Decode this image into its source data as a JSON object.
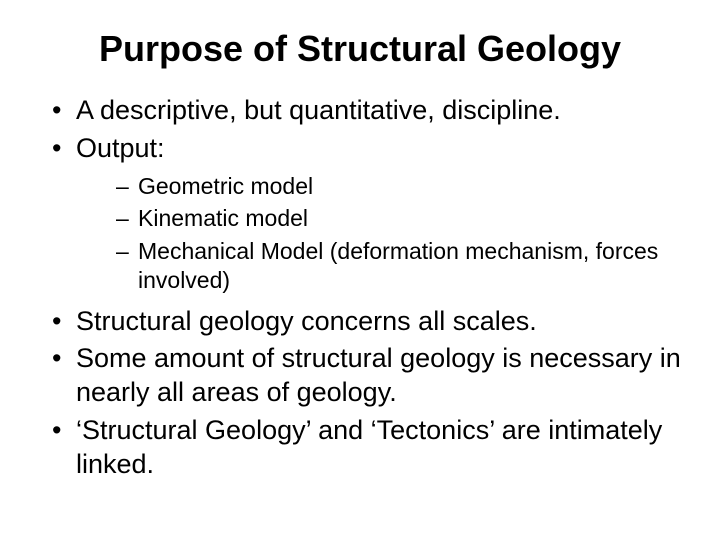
{
  "slide": {
    "title": "Purpose of Structural Geology",
    "bullets": {
      "b1": "A descriptive, but quantitative, discipline.",
      "b2": "Output:",
      "b2_sub": {
        "s1": "Geometric model",
        "s2": "Kinematic model",
        "s3": "Mechanical Model (deformation mechanism, forces involved)"
      },
      "b3": "Structural geology concerns all scales.",
      "b4": "Some amount of structural geology is necessary in nearly all areas of geology.",
      "b5": "‘Structural Geology’ and ‘Tectonics’ are intimately linked."
    }
  },
  "style": {
    "background_color": "#ffffff",
    "text_color": "#000000",
    "title_fontsize": 36,
    "title_fontweight": "bold",
    "level1_fontsize": 27,
    "level2_fontsize": 23,
    "font_family": "Arial"
  }
}
